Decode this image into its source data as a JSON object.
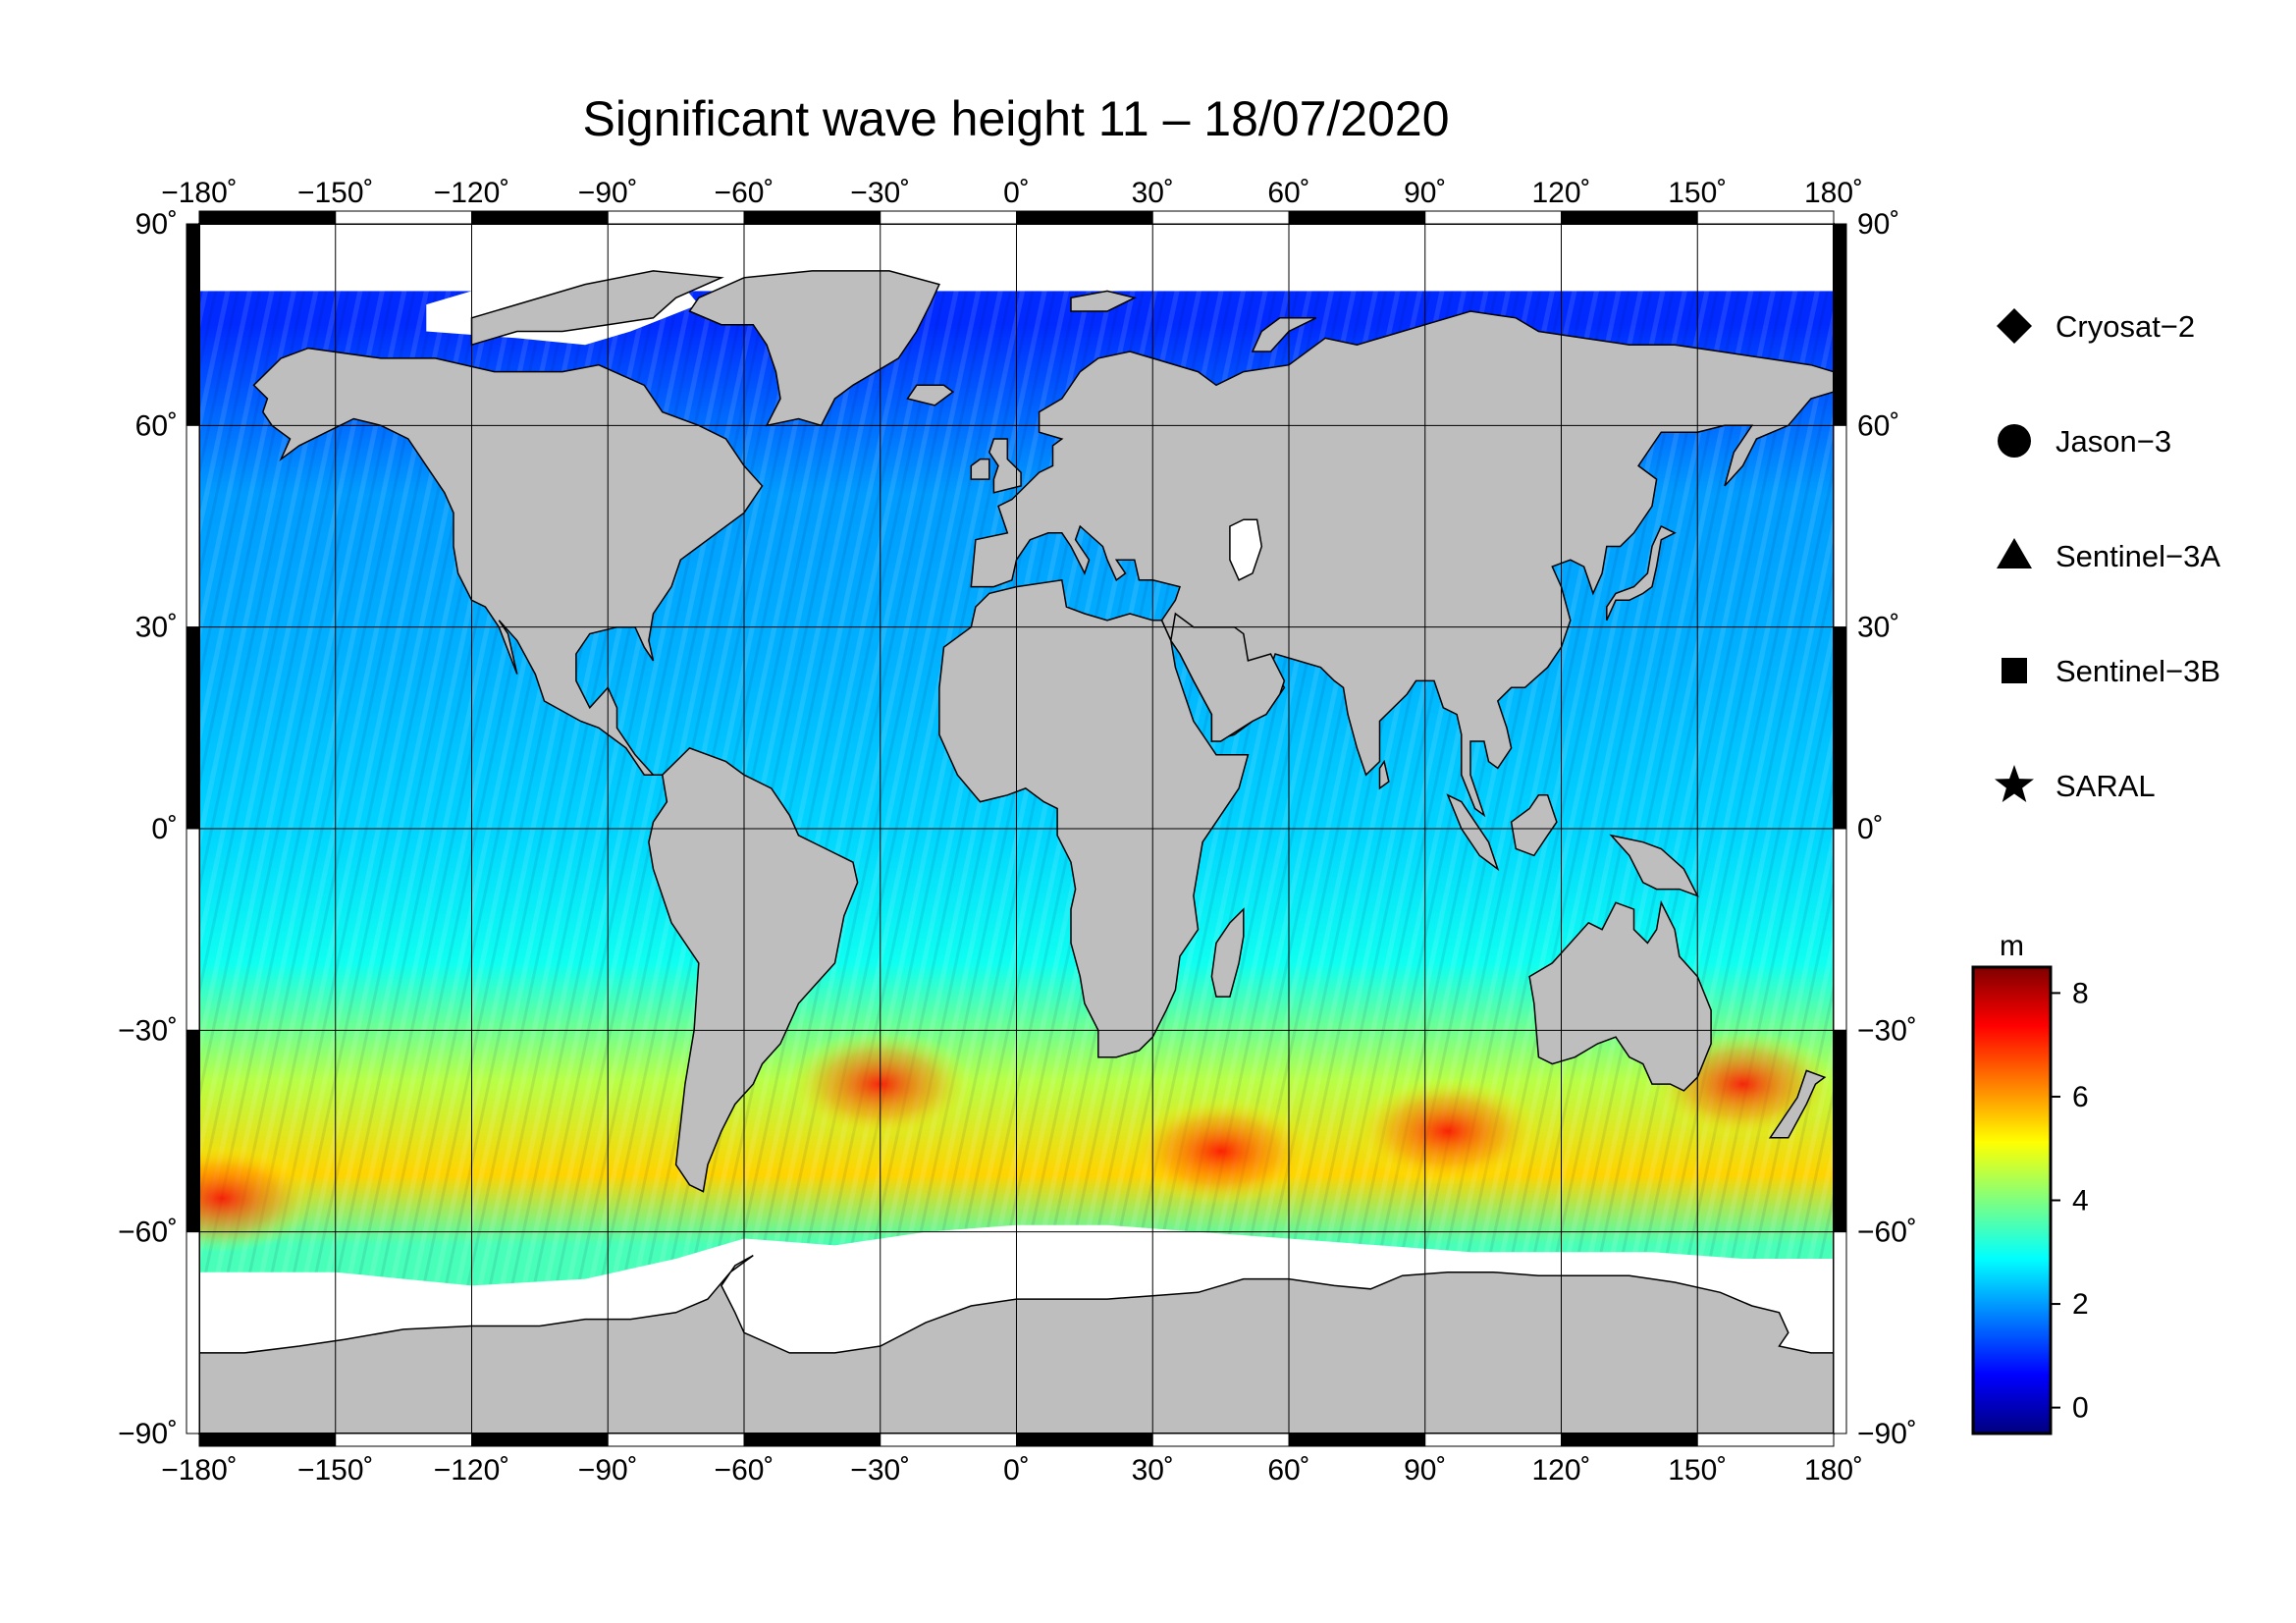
{
  "title": "Significant wave height 11 – 18/07/2020",
  "map": {
    "projection": "equirectangular",
    "lon_range": [
      -180,
      180
    ],
    "lat_range": [
      -90,
      90
    ],
    "lon_ticks": [
      {
        "value": -180,
        "label": "−180˚"
      },
      {
        "value": -150,
        "label": "−150˚"
      },
      {
        "value": -120,
        "label": "−120˚"
      },
      {
        "value": -90,
        "label": "−90˚"
      },
      {
        "value": -60,
        "label": "−60˚"
      },
      {
        "value": -30,
        "label": "−30˚"
      },
      {
        "value": 0,
        "label": "0˚"
      },
      {
        "value": 30,
        "label": "30˚"
      },
      {
        "value": 60,
        "label": "60˚"
      },
      {
        "value": 90,
        "label": "90˚"
      },
      {
        "value": 120,
        "label": "120˚"
      },
      {
        "value": 150,
        "label": "150˚"
      },
      {
        "value": 180,
        "label": "180˚"
      }
    ],
    "lat_ticks": [
      {
        "value": 90,
        "label": "90˚"
      },
      {
        "value": 60,
        "label": "60˚"
      },
      {
        "value": 30,
        "label": "30˚"
      },
      {
        "value": 0,
        "label": "0˚"
      },
      {
        "value": -30,
        "label": "−30˚"
      },
      {
        "value": -60,
        "label": "−60˚"
      },
      {
        "value": -90,
        "label": "−90˚"
      }
    ],
    "land_color": "#bebebe",
    "ice_color": "#ffffff",
    "grid": true
  },
  "legend": {
    "items": [
      {
        "label": "Cryosat−2",
        "marker": "diamond"
      },
      {
        "label": "Jason−3",
        "marker": "circle"
      },
      {
        "label": "Sentinel−3A",
        "marker": "triangle"
      },
      {
        "label": "Sentinel−3B",
        "marker": "square"
      },
      {
        "label": "SARAL",
        "marker": "star"
      }
    ]
  },
  "colorbar": {
    "unit": "m",
    "min": -0.5,
    "max": 8.5,
    "ticks": [
      {
        "value": 0,
        "label": "0"
      },
      {
        "value": 2,
        "label": "2"
      },
      {
        "value": 4,
        "label": "4"
      },
      {
        "value": 6,
        "label": "6"
      },
      {
        "value": 8,
        "label": "8"
      }
    ],
    "colors": [
      "#00007f",
      "#0000ff",
      "#007fff",
      "#00ffff",
      "#7fff7f",
      "#ffff00",
      "#ff7f00",
      "#ff0000",
      "#7f0000"
    ]
  },
  "wave_bands": [
    {
      "lat_from": 90,
      "lat_to": 60,
      "hs": 1.0
    },
    {
      "lat_from": 60,
      "lat_to": 40,
      "hs": 2.0
    },
    {
      "lat_from": 40,
      "lat_to": 10,
      "hs": 2.2
    },
    {
      "lat_from": 10,
      "lat_to": -10,
      "hs": 2.5
    },
    {
      "lat_from": -10,
      "lat_to": -30,
      "hs": 3.0
    },
    {
      "lat_from": -30,
      "lat_to": -45,
      "hs": 4.5
    },
    {
      "lat_from": -45,
      "lat_to": -58,
      "hs": 5.5
    },
    {
      "lat_from": -58,
      "lat_to": -66,
      "hs": 3.5
    }
  ],
  "hot_spots": [
    {
      "lon": 95,
      "lat": -45,
      "hs": 7.5
    },
    {
      "lon": 45,
      "lat": -48,
      "hs": 7.2
    },
    {
      "lon": -30,
      "lat": -38,
      "hs": 6.5
    },
    {
      "lon": -175,
      "lat": -55,
      "hs": 6.0
    },
    {
      "lon": 160,
      "lat": -38,
      "hs": 6.0
    }
  ]
}
